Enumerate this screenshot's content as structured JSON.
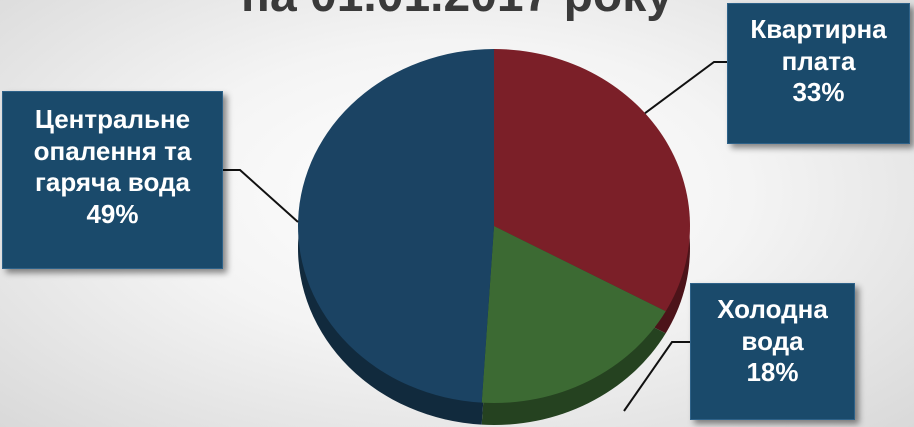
{
  "title_partial": "на  01.01.2017 року",
  "chart_data": {
    "type": "pie",
    "style": "3d",
    "categories": [
      "Квартирна плата",
      "Холодна вода",
      "Центральне опалення та гаряча вода"
    ],
    "values": [
      33,
      18,
      49
    ],
    "labels": [
      {
        "lines": [
          "Квартирна",
          "плата",
          "33%"
        ]
      },
      {
        "lines": [
          "Холодна",
          "вода",
          "18%"
        ]
      },
      {
        "lines": [
          "Центральне",
          "опалення та",
          "гаряча вода",
          "49%"
        ]
      }
    ],
    "colors": [
      "#7b1f28",
      "#3c6a33",
      "#1b4363"
    ],
    "label_box_color": "#1a4a6b"
  }
}
